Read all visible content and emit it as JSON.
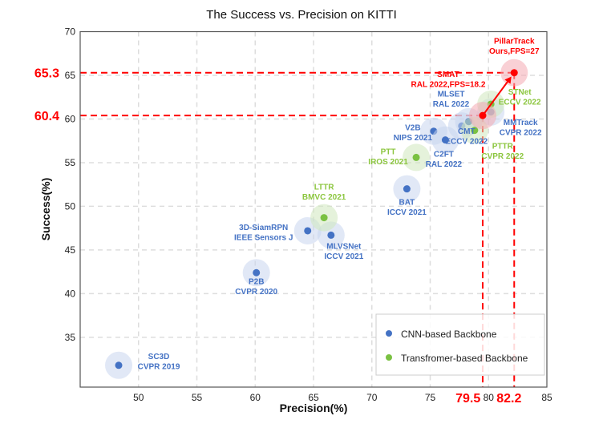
{
  "chart_data": {
    "type": "scatter",
    "title": "The Success vs. Precision on KITTI",
    "xlabel": "Precision(%)",
    "ylabel": "Success(%)",
    "xlim": [
      45,
      85
    ],
    "ylim": [
      29.3,
      70
    ],
    "xticks": [
      50,
      55,
      60,
      65,
      70,
      75,
      80,
      85
    ],
    "yticks": [
      35,
      40,
      45,
      50,
      55,
      60,
      65,
      70
    ],
    "grid": true,
    "legend_position": "bottom-right",
    "colors": {
      "cnn": "#4472c4",
      "transformer": "#7ac142",
      "ours": "#ff0000"
    },
    "series": [
      {
        "name": "CNN-based Backbone",
        "points": [
          {
            "name": "SC3D",
            "venue": "CVPR 2019",
            "x": 48.3,
            "y": 31.8
          },
          {
            "name": "P2B",
            "venue": "CVPR 2020",
            "x": 60.1,
            "y": 42.4
          },
          {
            "name": "3D-SiamRPN",
            "venue": "IEEE Sensors J",
            "x": 64.5,
            "y": 47.2
          },
          {
            "name": "MLVSNet",
            "venue": "ICCV 2021",
            "x": 66.5,
            "y": 46.7
          },
          {
            "name": "BAT",
            "venue": "ICCV 2021",
            "x": 73.0,
            "y": 52.0
          },
          {
            "name": "V2B",
            "venue": "NIPS 2021",
            "x": 75.3,
            "y": 58.6
          },
          {
            "name": "C2FT",
            "venue": "RAL 2022",
            "x": 76.3,
            "y": 57.6
          },
          {
            "name": "CMT",
            "venue": "ECCV 2022",
            "x": 77.7,
            "y": 59.2
          },
          {
            "name": "MLSET",
            "venue": "RAL 2022",
            "x": 78.3,
            "y": 59.7
          },
          {
            "name": "MMTrack",
            "venue": "CVPR 2022",
            "x": 80.2,
            "y": 60.8
          }
        ]
      },
      {
        "name": "Transfromer-based Backbone",
        "points": [
          {
            "name": "LTTR",
            "venue": "BMVC 2021",
            "x": 65.9,
            "y": 48.7
          },
          {
            "name": "PTT",
            "venue": "IROS 2021",
            "x": 73.8,
            "y": 55.6
          },
          {
            "name": "PTTR",
            "venue": "CVPR 2022",
            "x": 78.8,
            "y": 58.7
          },
          {
            "name": "STNet",
            "venue": "ECCV 2022",
            "x": 80.2,
            "y": 61.7
          }
        ]
      }
    ],
    "highlighted": [
      {
        "name": "SMAT",
        "venue": "RAL 2022,FPS=18.2",
        "x": 79.5,
        "y": 60.4,
        "x_label": "79.5",
        "y_label": "60.4"
      },
      {
        "name": "PillarTrack",
        "venue": "Ours,FPS=27",
        "x": 82.2,
        "y": 65.3,
        "x_label": "82.2",
        "y_label": "65.3"
      }
    ],
    "annotations": [
      {
        "type": "arrow",
        "from": "SMAT",
        "to": "PillarTrack"
      }
    ]
  }
}
